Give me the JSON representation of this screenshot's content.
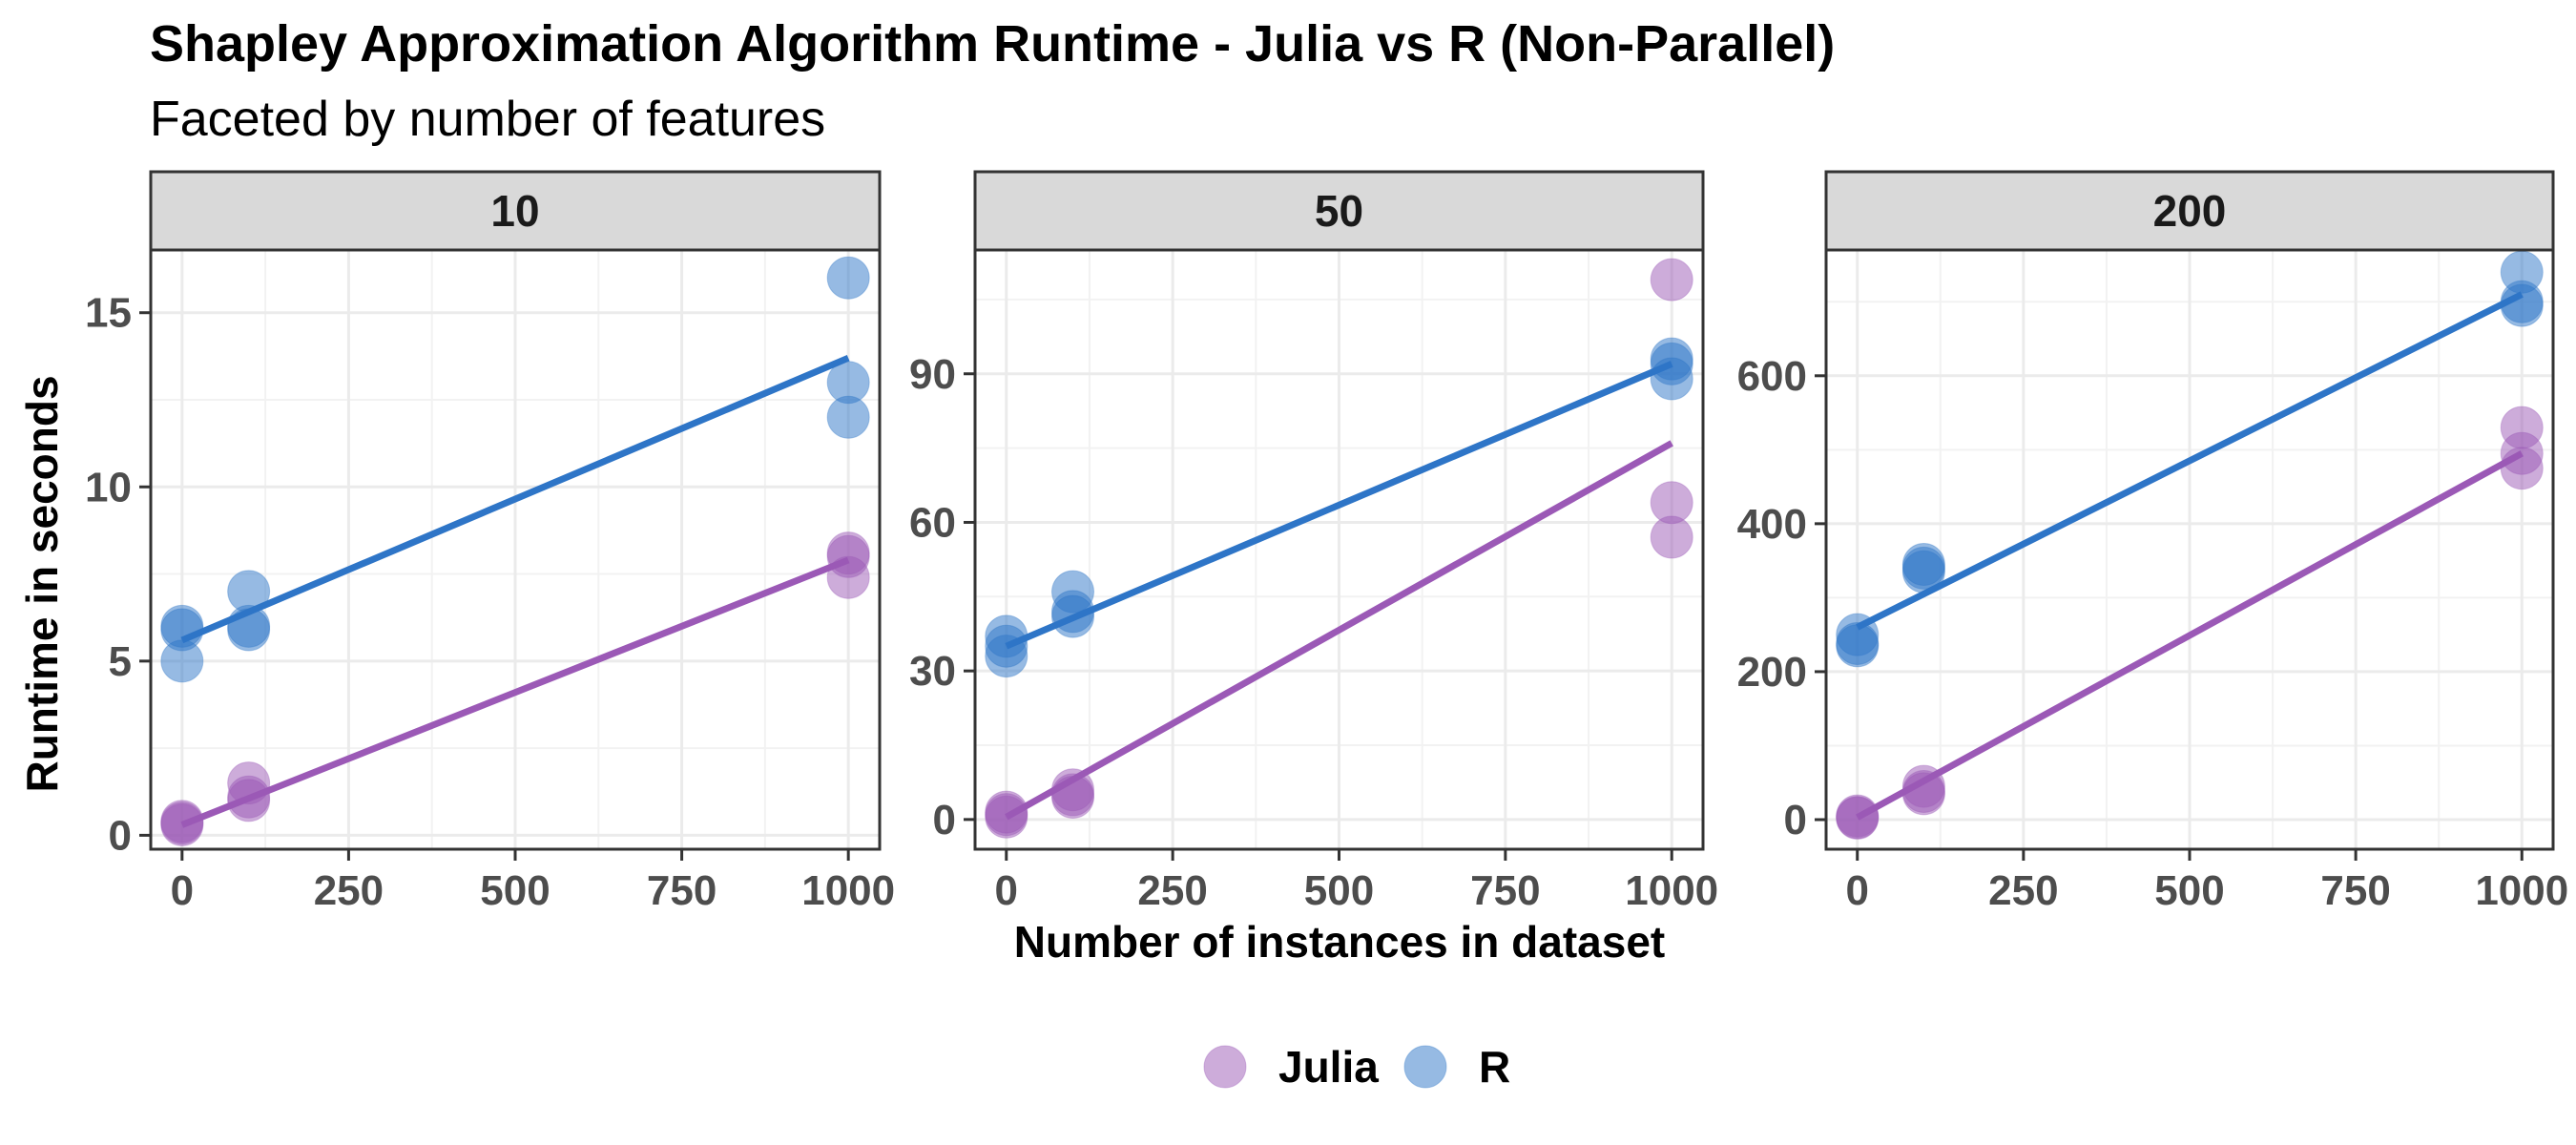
{
  "chart_data": {
    "type": "scatter",
    "title": "Shapley Approximation Algorithm Runtime - Julia vs R (Non-Parallel)",
    "subtitle": "Faceted by number of features",
    "xlabel": "Number of instances in dataset",
    "ylabel": "Runtime in seconds",
    "grid": true,
    "legend_position": "bottom",
    "series_colors": {
      "Julia": "#9B59B6",
      "R": "#2E75C7"
    },
    "legend": [
      {
        "name": "Julia",
        "color": "#9B59B6"
      },
      {
        "name": "R",
        "color": "#2E75C7"
      }
    ],
    "x_ticks": [
      0,
      250,
      500,
      750,
      1000
    ],
    "x_tick_labels": [
      "0",
      "250",
      "500",
      "750",
      "1000"
    ],
    "panels": [
      {
        "label": "10",
        "xlim": [
          -47,
          1047
        ],
        "ylim": [
          -0.4,
          16.8
        ],
        "y_ticks": [
          0,
          5,
          10,
          15
        ],
        "y_tick_labels": [
          "0",
          "5",
          "10",
          "15"
        ],
        "series": [
          {
            "name": "Julia",
            "points": [
              [
                0,
                0.3
              ],
              [
                0,
                0.35
              ],
              [
                0,
                0.4
              ],
              [
                100,
                1.5
              ],
              [
                100,
                1.1
              ],
              [
                100,
                1.0
              ],
              [
                1000,
                8.1
              ],
              [
                1000,
                7.4
              ],
              [
                1000,
                8.0
              ]
            ],
            "fit": [
              [
                0,
                0.3
              ],
              [
                1000,
                7.9
              ]
            ]
          },
          {
            "name": "R",
            "points": [
              [
                0,
                6.0
              ],
              [
                0,
                5.0
              ],
              [
                0,
                5.9
              ],
              [
                100,
                7.0
              ],
              [
                100,
                6.0
              ],
              [
                100,
                5.9
              ],
              [
                1000,
                16.0
              ],
              [
                1000,
                13.0
              ],
              [
                1000,
                12.0
              ]
            ],
            "fit": [
              [
                0,
                5.6
              ],
              [
                1000,
                13.7
              ]
            ]
          }
        ]
      },
      {
        "label": "50",
        "xlim": [
          -47,
          1047
        ],
        "ylim": [
          -6,
          115
        ],
        "y_ticks": [
          0,
          30,
          60,
          90
        ],
        "y_tick_labels": [
          "0",
          "30",
          "60",
          "90"
        ],
        "series": [
          {
            "name": "Julia",
            "points": [
              [
                0,
                0.5
              ],
              [
                0,
                1.0
              ],
              [
                0,
                1.5
              ],
              [
                100,
                5.0
              ],
              [
                100,
                6.0
              ],
              [
                100,
                4.5
              ],
              [
                1000,
                109
              ],
              [
                1000,
                64
              ],
              [
                1000,
                57
              ]
            ],
            "fit": [
              [
                0,
                0.5
              ],
              [
                1000,
                76
              ]
            ]
          },
          {
            "name": "R",
            "points": [
              [
                0,
                33
              ],
              [
                0,
                37
              ],
              [
                0,
                35
              ],
              [
                100,
                46
              ],
              [
                100,
                41
              ],
              [
                100,
                42
              ],
              [
                1000,
                93
              ],
              [
                1000,
                92
              ],
              [
                1000,
                89
              ]
            ],
            "fit": [
              [
                0,
                35
              ],
              [
                1000,
                92
              ]
            ]
          }
        ]
      },
      {
        "label": "200",
        "xlim": [
          -47,
          1047
        ],
        "ylim": [
          -40,
          770
        ],
        "y_ticks": [
          0,
          200,
          400,
          600
        ],
        "y_tick_labels": [
          "0",
          "200",
          "400",
          "600"
        ],
        "series": [
          {
            "name": "Julia",
            "points": [
              [
                0,
                5
              ],
              [
                0,
                3
              ],
              [
                0,
                2
              ],
              [
                100,
                45
              ],
              [
                100,
                38
              ],
              [
                100,
                35
              ],
              [
                1000,
                530
              ],
              [
                1000,
                495
              ],
              [
                1000,
                475
              ]
            ],
            "fit": [
              [
                0,
                3
              ],
              [
                1000,
                495
              ]
            ]
          },
          {
            "name": "R",
            "points": [
              [
                0,
                250
              ],
              [
                0,
                235
              ],
              [
                0,
                238
              ],
              [
                100,
                340
              ],
              [
                100,
                335
              ],
              [
                100,
                345
              ],
              [
                1000,
                740
              ],
              [
                1000,
                700
              ],
              [
                1000,
                695
              ]
            ],
            "fit": [
              [
                0,
                260
              ],
              [
                1000,
                710
              ]
            ]
          }
        ]
      }
    ]
  }
}
